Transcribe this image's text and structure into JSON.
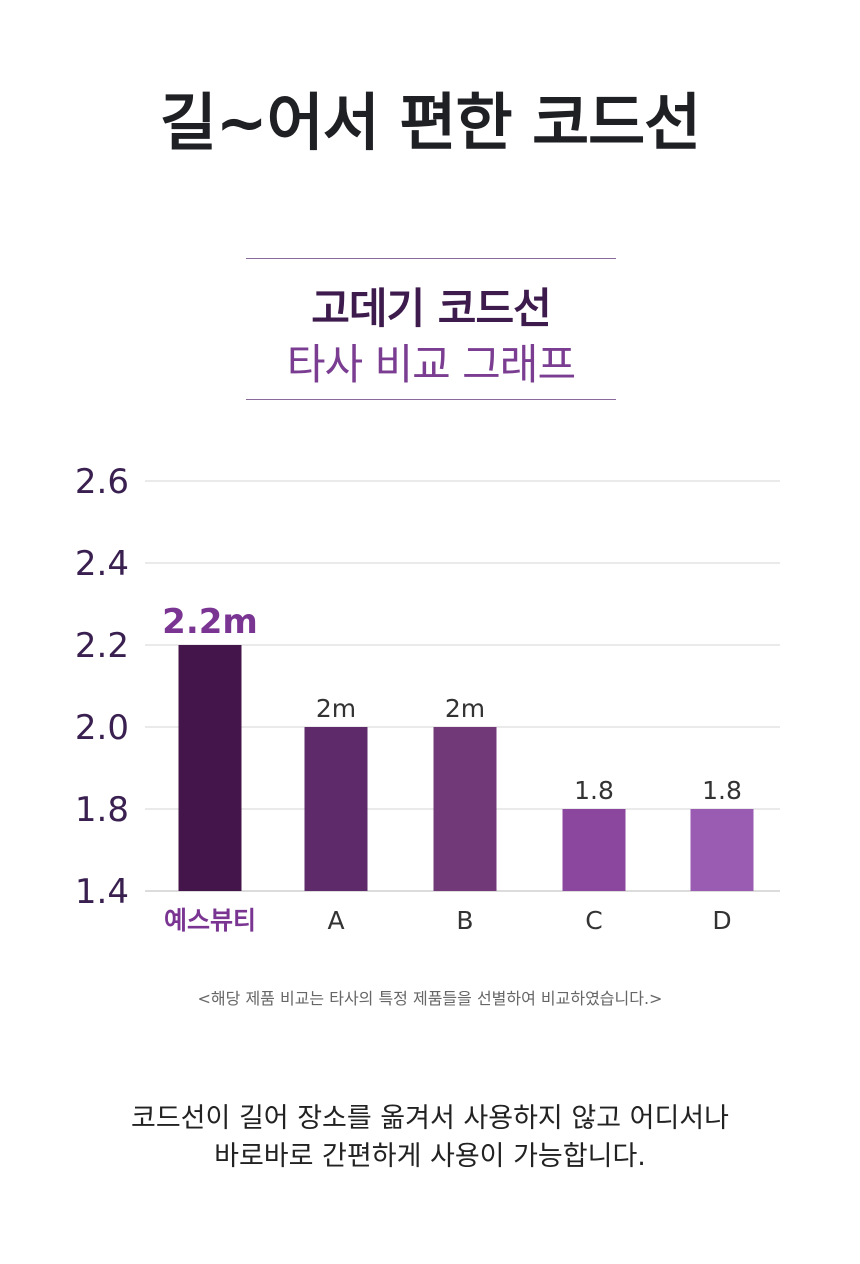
{
  "headline": "길~어서 편한 코드선",
  "chart_title": {
    "line1": "고데기 코드선",
    "line2": "타사 비교 그래프"
  },
  "note": "<해당 제품 비교는 타사의 특정 제품들을 선별하여 비교하였습니다.>",
  "description": {
    "line1": "코드선이 길어 장소를 옮겨서 사용하지 않고 어디서나",
    "line2": "바로바로 간편하게 사용이 가능합니다."
  },
  "chart_data": {
    "type": "bar",
    "title": "고데기 코드선 타사 비교 그래프",
    "categories": [
      "예스뷰티",
      "A",
      "B",
      "C",
      "D"
    ],
    "values": [
      2.2,
      2.0,
      2.0,
      1.8,
      1.8
    ],
    "value_labels": [
      "2.2m",
      "2m",
      "2m",
      "1.8",
      "1.8"
    ],
    "y_ticks": [
      "2.6",
      "2.4",
      "2.2",
      "2.0",
      "1.8",
      "1.4"
    ],
    "colors": [
      "#44154a",
      "#5e2a6a",
      "#713978",
      "#8b479d",
      "#9a5bb3"
    ],
    "label_colors": [
      "#7a3593",
      "#333333",
      "#333333",
      "#333333",
      "#333333"
    ],
    "grid": true,
    "xlabel": "",
    "ylabel": ""
  }
}
